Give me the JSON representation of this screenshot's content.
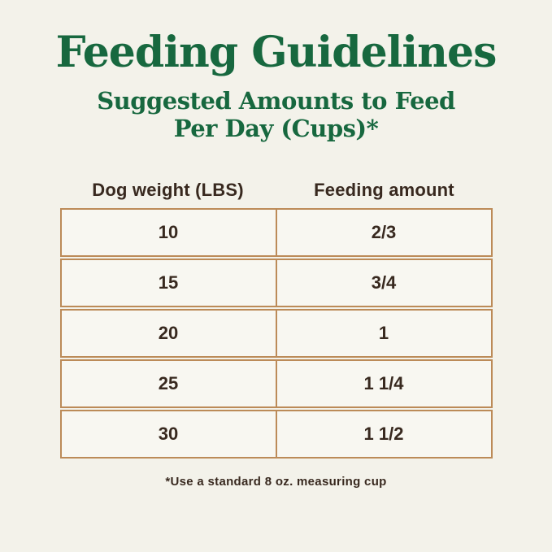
{
  "page": {
    "title": "Feeding Guidelines",
    "subtitle_line1": "Suggested Amounts to Feed",
    "subtitle_line2": "Per Day (Cups)*",
    "footnote": "*Use a standard 8 oz. measuring cup"
  },
  "table": {
    "columns": [
      "Dog weight (LBS)",
      "Feeding amount"
    ],
    "rows": [
      {
        "weight": "10",
        "amount": "2/3"
      },
      {
        "weight": "15",
        "amount": "3/4"
      },
      {
        "weight": "20",
        "amount": "1"
      },
      {
        "weight": "25",
        "amount": "1 1/4"
      },
      {
        "weight": "30",
        "amount": "1 1/2"
      }
    ]
  },
  "colors": {
    "background": "#f3f2ea",
    "cell_background": "#f8f7f1",
    "title_green": "#17683f",
    "text_brown": "#38291f",
    "border_tan": "#bc8b58"
  },
  "chart_data": {
    "type": "table",
    "title": "Feeding Guidelines",
    "subtitle": "Suggested Amounts to Feed Per Day (Cups)*",
    "columns": [
      "Dog weight (LBS)",
      "Feeding amount"
    ],
    "rows": [
      [
        "10",
        "2/3"
      ],
      [
        "15",
        "3/4"
      ],
      [
        "20",
        "1"
      ],
      [
        "25",
        "1 1/4"
      ],
      [
        "30",
        "1 1/2"
      ]
    ],
    "footnote": "*Use a standard 8 oz. measuring cup"
  }
}
